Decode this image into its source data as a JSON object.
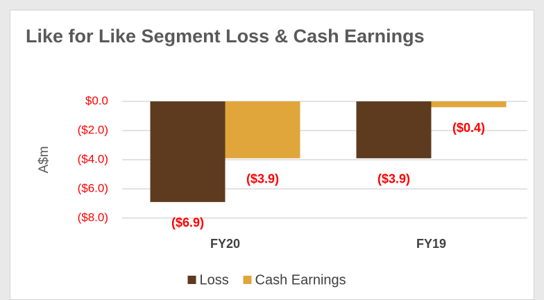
{
  "chart_data": {
    "type": "bar",
    "title": "Like for Like Segment Loss & Cash Earnings",
    "y_label": "A$m",
    "categories": [
      "FY20",
      "FY19"
    ],
    "series": [
      {
        "name": "Loss",
        "color": "#5e3b1f",
        "values": [
          -6.9,
          -3.9
        ],
        "value_labels": [
          "($6.9)",
          "($3.9)"
        ]
      },
      {
        "name": "Cash Earnings",
        "color": "#e0a63c",
        "values": [
          -3.9,
          -0.4
        ],
        "value_labels": [
          "($3.9)",
          "($0.4)"
        ]
      }
    ],
    "ylim": [
      -8,
      0
    ],
    "yticks": [
      {
        "value": 0,
        "label": "$0.0"
      },
      {
        "value": -2,
        "label": "($2.0)"
      },
      {
        "value": -4,
        "label": "($4.0)"
      },
      {
        "value": -6,
        "label": "($6.0)"
      },
      {
        "value": -8,
        "label": "($8.0)"
      }
    ],
    "grid": true,
    "legend": "bottom"
  }
}
